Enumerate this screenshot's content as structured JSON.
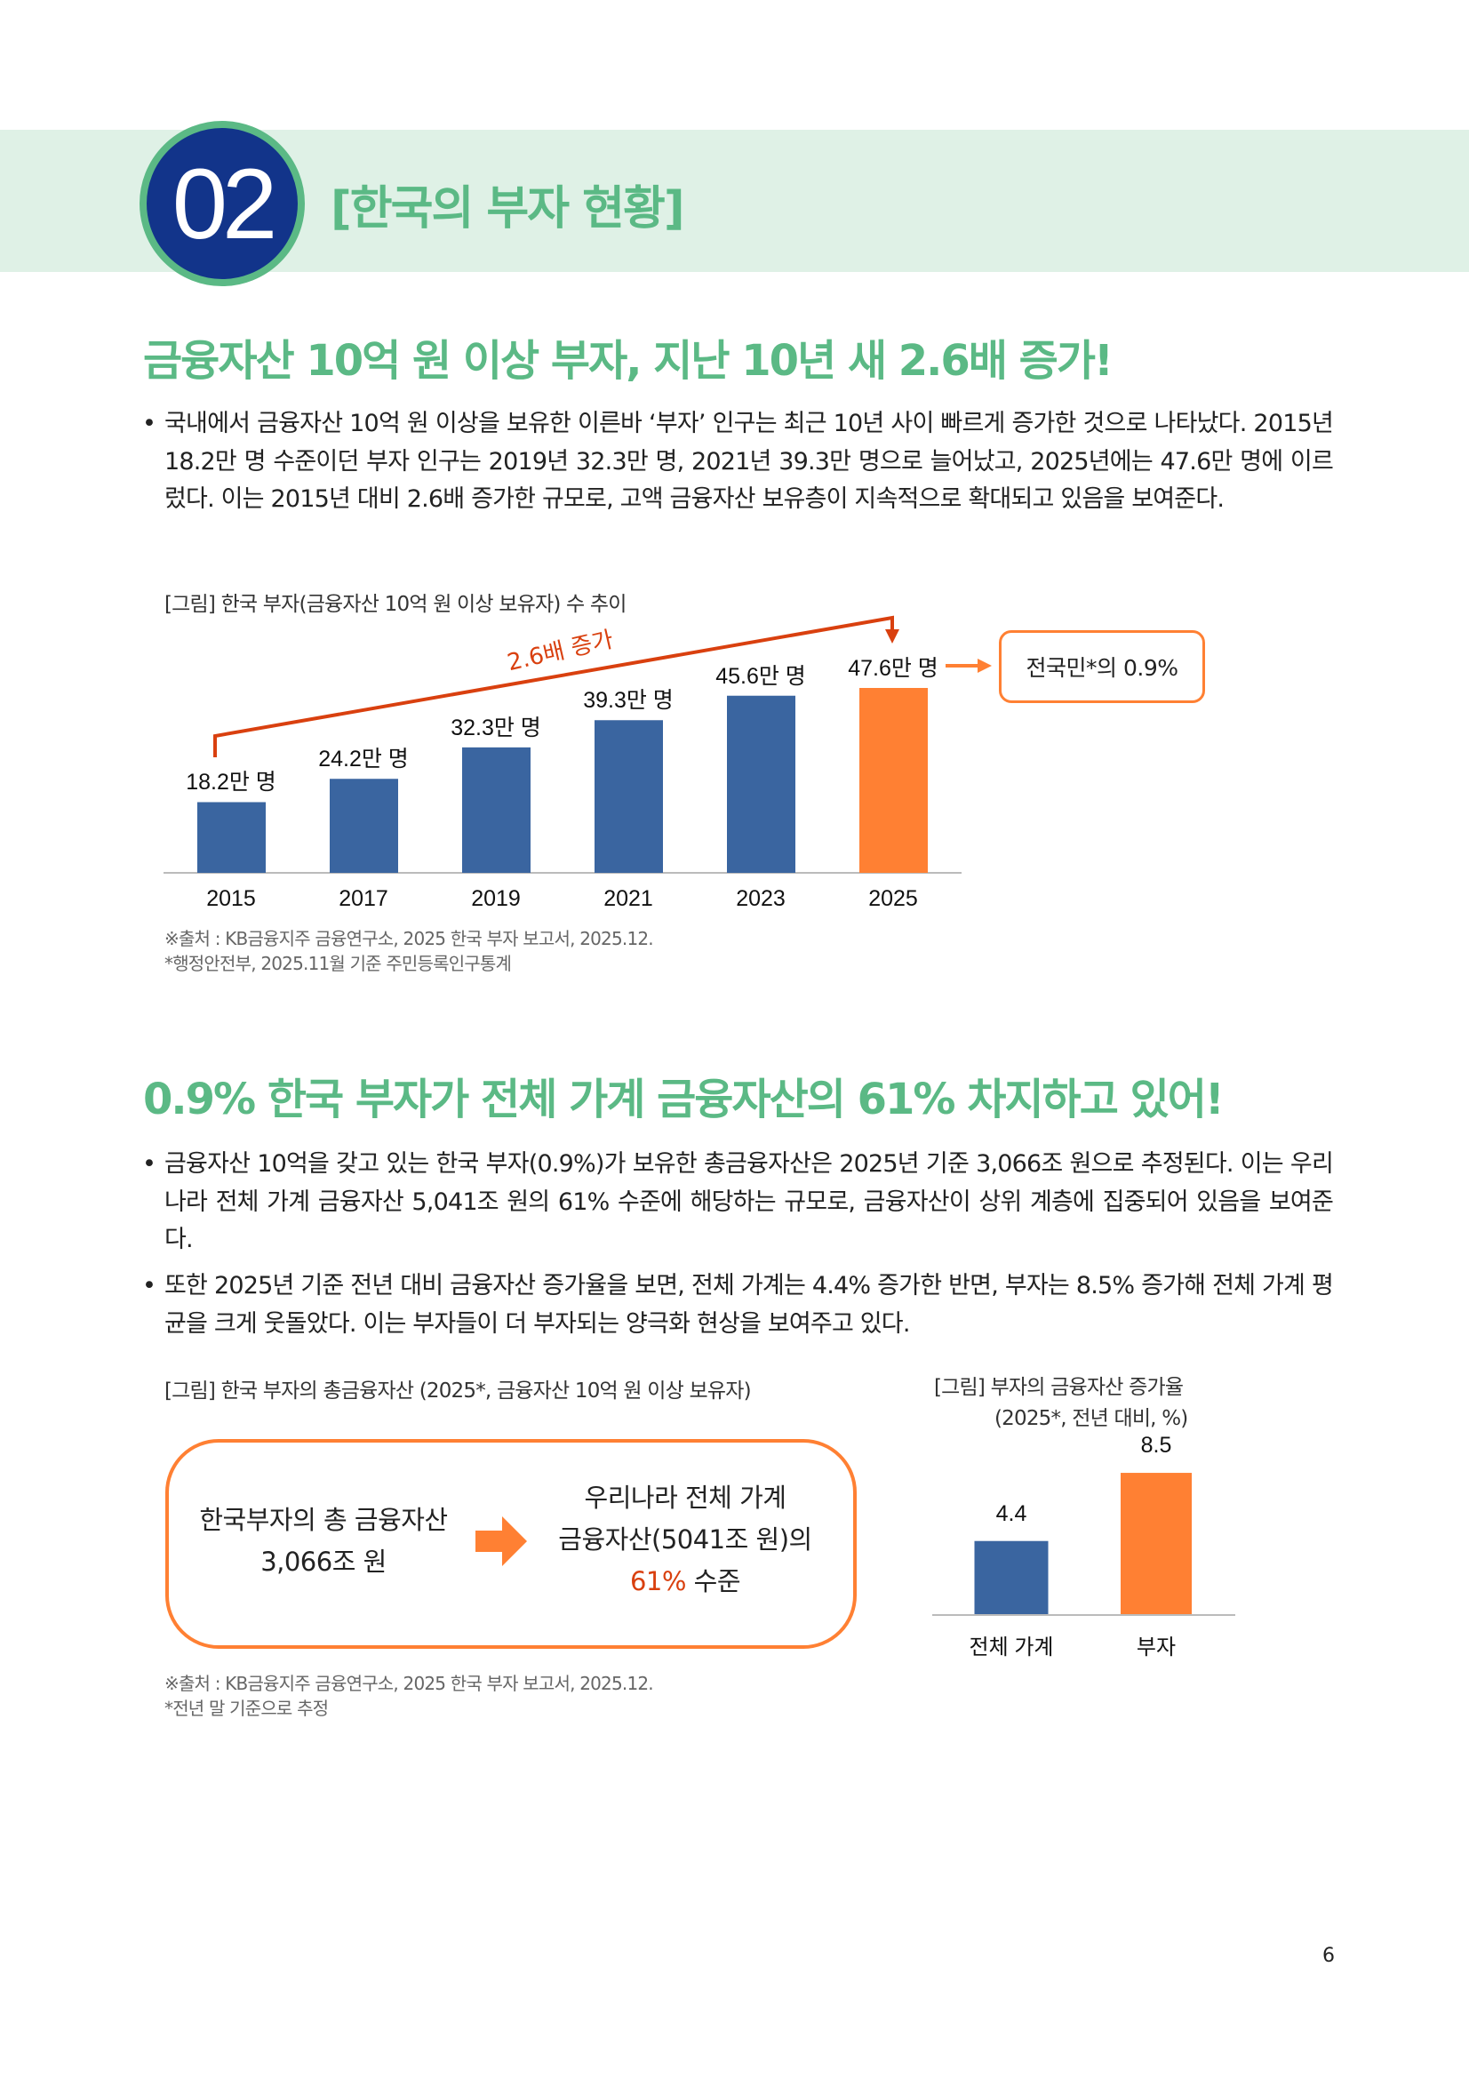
{
  "section": {
    "number": "02",
    "title": "[한국의 부자 현황]"
  },
  "block1": {
    "heading": "금융자산 10억 원 이상 부자, 지난 10년 새 2.6배 증가!",
    "bullets": [
      "국내에서 금융자산 10억 원 이상을 보유한 이른바 ‘부자’ 인구는 최근 10년 사이 빠르게 증가한 것으로 나타났다. 2015년 18.2만 명 수준이던 부자 인구는 2019년 32.3만 명, 2021년 39.3만 명으로 늘어났고, 2025년에는 47.6만 명에 이르렀다. 이는 2015년 대비 2.6배 증가한 규모로, 고액 금융자산 보유층이 지속적으로 확대되고 있음을 보여준다."
    ],
    "caption": "[그림] 한국 부자(금융자산 10억 원 이상 보유자) 수 추이",
    "sources": [
      "※출처 : KB금융지주 금융연구소, 2025 한국 부자 보고서, 2025.12.",
      "*행정안전부, 2025.11월 기준 주민등록인구통계"
    ]
  },
  "block2": {
    "heading": "0.9% 한국 부자가 전체 가계 금융자산의 61% 차지하고 있어!",
    "bullets": [
      "금융자산 10억을 갖고 있는 한국 부자(0.9%)가 보유한 총금융자산은 2025년 기준 3,066조 원으로 추정된다. 이는 우리나라 전체 가계 금융자산 5,041조 원의 61% 수준에 해당하는 규모로, 금융자산이 상위 계층에 집중되어 있음을 보여준다.",
      "또한 2025년 기준 전년 대비 금융자산 증가율을 보면, 전체 가계는 4.4% 증가한 반면, 부자는 8.5% 증가해 전체 가계 평균을 크게 웃돌았다. 이는 부자들이 더 부자되는 양극화 현상을 보여주고 있다."
    ],
    "caption_left": "[그림] 한국 부자의 총금융자산 (2025*, 금융자산 10억 원 이상 보유자)",
    "box": {
      "left_line1": "한국부자의 총 금융자산",
      "left_line2": "3,066조 원",
      "right_line1": "우리나라 전체 가계",
      "right_line2": "금융자산(5041조 원)의",
      "right_highlight": "61%",
      "right_line3_rest": " 수준"
    },
    "caption_right_line1": "[그림] 부자의 금융자산 증가율",
    "caption_right_line2": "(2025*, 전년 대비, %)",
    "sources": [
      "※출처 : KB금융지주 금융연구소, 2025 한국 부자 보고서, 2025.12.",
      "*전년 말 기준으로 추정"
    ]
  },
  "chart_data": [
    {
      "type": "bar",
      "categories": [
        "2015",
        "2017",
        "2019",
        "2021",
        "2023",
        "2025"
      ],
      "values": [
        18.2,
        24.2,
        32.3,
        39.3,
        45.6,
        47.6
      ],
      "data_labels": [
        "18.2만 명",
        "24.2만 명",
        "32.3만 명",
        "39.3만 명",
        "45.6만 명",
        "47.6만 명"
      ],
      "annotation": "2.6배 증가",
      "callout": "전국민*의 0.9%",
      "colors": {
        "bar": "#3a65a0",
        "highlight": "#ff8033",
        "trend": "#d9400f"
      }
    },
    {
      "type": "bar",
      "categories": [
        "전체 가계",
        "부자"
      ],
      "values": [
        4.4,
        8.5
      ],
      "data_labels": [
        "4.4",
        "8.5"
      ],
      "colors": [
        "#3a65a0",
        "#ff8033"
      ]
    }
  ],
  "page_number": "6"
}
